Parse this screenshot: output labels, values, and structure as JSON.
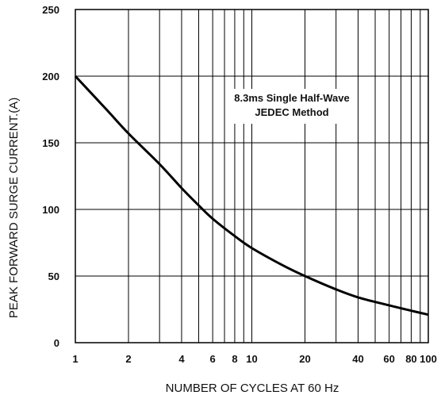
{
  "chart_data": {
    "type": "line",
    "title": "",
    "xlabel": "NUMBER OF CYCLES AT 60 Hz",
    "ylabel": "PEAK FORWARD SURGE CURRENT.(A)",
    "xscale": "log",
    "xlim": [
      1,
      100
    ],
    "ylim": [
      0,
      250
    ],
    "grid": true,
    "x_ticks": [
      1,
      2,
      4,
      6,
      8,
      10,
      20,
      40,
      60,
      80,
      100
    ],
    "y_ticks": [
      0,
      50,
      100,
      150,
      200,
      250
    ],
    "annotation": [
      "8.3ms Single Half-Wave",
      "JEDEC Method"
    ],
    "series": [
      {
        "x": [
          1,
          1.5,
          2,
          3,
          4,
          5,
          6,
          8,
          10,
          15,
          20,
          30,
          40,
          60,
          80,
          100
        ],
        "y": [
          200,
          175,
          157,
          134,
          116,
          103,
          93,
          80,
          71,
          58,
          50,
          40,
          34,
          28,
          24,
          21
        ]
      }
    ]
  }
}
